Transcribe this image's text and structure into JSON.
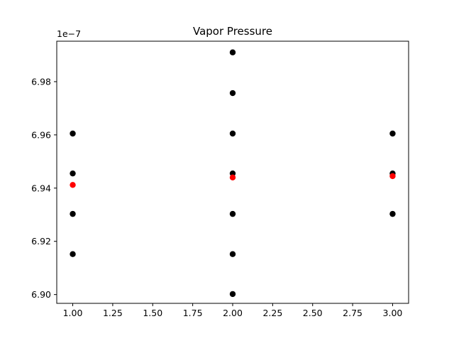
{
  "chart_data": {
    "type": "scatter",
    "title": "Vapor Pressure",
    "xlabel": "",
    "ylabel": "",
    "y_offset_text": "1e−7",
    "xlim": [
      0.9,
      3.1
    ],
    "ylim": [
      6.8967,
      6.9952
    ],
    "x_ticks": [
      1.0,
      1.25,
      1.5,
      1.75,
      2.0,
      2.25,
      2.5,
      2.75,
      3.0
    ],
    "x_tick_labels": [
      "1.00",
      "1.25",
      "1.50",
      "1.75",
      "2.00",
      "2.25",
      "2.50",
      "2.75",
      "3.00"
    ],
    "y_ticks": [
      6.9,
      6.92,
      6.94,
      6.96,
      6.98
    ],
    "y_tick_labels": [
      "6.90",
      "6.92",
      "6.94",
      "6.96",
      "6.98"
    ],
    "grid": false,
    "series": [
      {
        "color": "#000000",
        "points": [
          {
            "x": 1,
            "y": 6.9605
          },
          {
            "x": 1,
            "y": 6.9455
          },
          {
            "x": 1,
            "y": 6.9303
          },
          {
            "x": 1,
            "y": 6.9152
          },
          {
            "x": 2,
            "y": 6.991
          },
          {
            "x": 2,
            "y": 6.9757
          },
          {
            "x": 2,
            "y": 6.9605
          },
          {
            "x": 2,
            "y": 6.9455
          },
          {
            "x": 2,
            "y": 6.9303
          },
          {
            "x": 2,
            "y": 6.9152
          },
          {
            "x": 2,
            "y": 6.9002
          },
          {
            "x": 3,
            "y": 6.9605
          },
          {
            "x": 3,
            "y": 6.9455
          },
          {
            "x": 3,
            "y": 6.9303
          }
        ]
      },
      {
        "color": "#ff0000",
        "points": [
          {
            "x": 1,
            "y": 6.9412
          },
          {
            "x": 2,
            "y": 6.944
          },
          {
            "x": 3,
            "y": 6.9445
          }
        ]
      }
    ]
  }
}
